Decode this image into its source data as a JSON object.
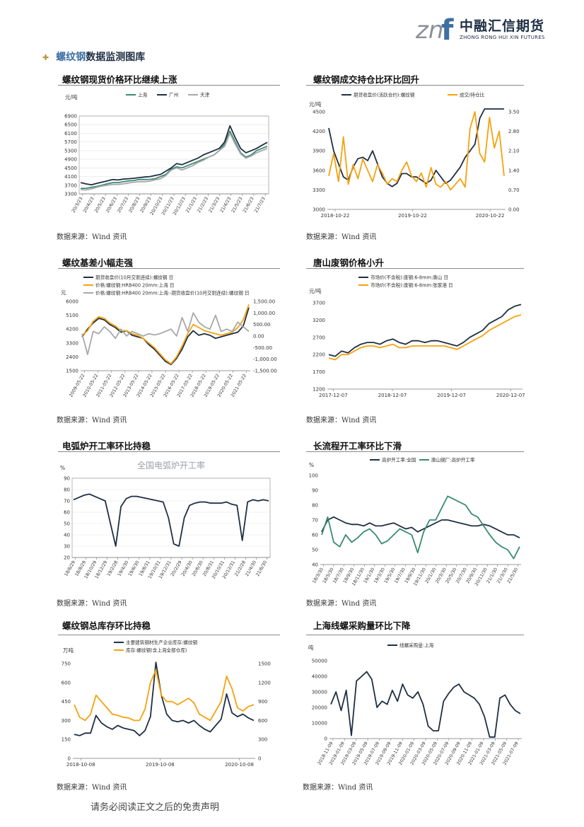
{
  "header": {
    "logo_mark": "znf",
    "logo_cn": "中融汇信期货",
    "logo_en": "ZHONG RONG HUI XIN FUTURES",
    "colors": {
      "navy": "#1f2f44",
      "blue": "#3d6fa3",
      "gray": "#8a8f97"
    }
  },
  "section": {
    "bullet": "✚",
    "prefix": "螺纹钢",
    "rest": "数据监测图库"
  },
  "source_text": "数据来源：Wind 资讯",
  "footer": "请务必阅读正文之后的免责声明",
  "panels": [
    {
      "title": "螺纹钢现货价格环比继续上涨"
    },
    {
      "title": "螺纹钢成交持仓比环比回升"
    },
    {
      "title": "螺纹基差小幅走强"
    },
    {
      "title": "唐山废钢价格小升"
    },
    {
      "title": "电弧炉开工率环比持稳"
    },
    {
      "title": "长流程开工率环比下滑"
    },
    {
      "title": "螺纹钢总库存环比持稳"
    },
    {
      "title": "上海线螺采购量环比下降"
    }
  ],
  "chart_data": [
    {
      "type": "line",
      "ylabel": "元/吨",
      "yticks": [
        3300,
        3700,
        4100,
        4500,
        4900,
        5300,
        5700,
        6100,
        6500,
        6900
      ],
      "ylim": [
        3300,
        6900
      ],
      "xticks": [
        "20/3/23",
        "20/4/23",
        "20/5/23",
        "20/6/23",
        "20/7/23",
        "20/8/23",
        "20/9/23",
        "20/10/23",
        "20/11/23",
        "20/12/23",
        "21/1/23",
        "21/2/23",
        "21/3/23",
        "21/4/23",
        "21/5/23",
        "21/6/23",
        "21/7/23"
      ],
      "grid": true,
      "legend_position": "top",
      "series": [
        {
          "name": "上海",
          "color": "#3a8a72",
          "values": [
            3550,
            3560,
            3600,
            3640,
            3700,
            3760,
            3820,
            3820,
            3860,
            3900,
            3920,
            3960,
            3960,
            3970,
            4000,
            4100,
            4200,
            4450,
            4550,
            4500,
            4600,
            4700,
            4800,
            4900,
            5000,
            5100,
            5300,
            5600,
            6200,
            5700,
            5200,
            5000,
            5100,
            5300,
            5400,
            5500
          ]
        },
        {
          "name": "广州",
          "color": "#1f2f44",
          "values": [
            3820,
            3760,
            3720,
            3780,
            3840,
            3900,
            3960,
            3940,
            3980,
            4000,
            4020,
            4050,
            4080,
            4100,
            4150,
            4200,
            4350,
            4500,
            4700,
            4650,
            4750,
            4850,
            4950,
            5100,
            5200,
            5300,
            5400,
            5700,
            6450,
            5900,
            5400,
            5200,
            5300,
            5400,
            5550,
            5680
          ]
        },
        {
          "name": "天津",
          "color": "#a8a8a8",
          "values": [
            3500,
            3480,
            3530,
            3600,
            3660,
            3700,
            3740,
            3740,
            3760,
            3800,
            3840,
            3860,
            3860,
            3890,
            3950,
            4000,
            4150,
            4400,
            4500,
            4400,
            4500,
            4600,
            4750,
            4850,
            5000,
            5100,
            5300,
            5500,
            6100,
            5600,
            5150,
            4950,
            5050,
            5200,
            5300,
            5400
          ]
        }
      ]
    },
    {
      "type": "line",
      "ylabel": "元/吨",
      "yticks": [
        3000,
        3300,
        3600,
        3900,
        4200,
        4500
      ],
      "ylim": [
        3000,
        4500
      ],
      "y2ticks": [
        "0.00",
        "0.70",
        "1.40",
        "2.10",
        "2.80",
        "3.50"
      ],
      "y2lim": [
        0,
        3.5
      ],
      "xticks": [
        "2018-10-22",
        "2019-10-22",
        "2020-10-22"
      ],
      "legend_position": "top",
      "series": [
        {
          "name": "期货收盘价(活跃合约):螺纹钢",
          "color": "#1f2f44",
          "axis": "left",
          "values": [
            4250,
            3900,
            3700,
            3500,
            3450,
            3650,
            3780,
            3800,
            3750,
            3900,
            3700,
            3500,
            3400,
            3350,
            3400,
            3550,
            3550,
            3500,
            3500,
            3450,
            3400,
            3450,
            3600,
            3500,
            3400,
            3450,
            3550,
            3650,
            3800,
            3900,
            4000,
            4400,
            4700,
            4600,
            5000,
            4800,
            4600
          ]
        },
        {
          "name": "成交/持仓比",
          "color": "#f5a20d",
          "axis": "right",
          "values": [
            1.2,
            2.0,
            1.0,
            2.6,
            0.9,
            1.6,
            1.1,
            1.8,
            1.4,
            1.0,
            1.6,
            1.3,
            0.9,
            1.1,
            1.0,
            1.4,
            1.7,
            1.2,
            1.0,
            1.3,
            0.8,
            1.5,
            0.9,
            0.8,
            1.0,
            0.7,
            0.9,
            1.1,
            0.8,
            2.9,
            3.5,
            2.0,
            1.7,
            3.3,
            2.2,
            2.8,
            1.2
          ]
        }
      ]
    },
    {
      "type": "line",
      "ylabel": "元",
      "yticks": [
        1500,
        2400,
        3300,
        4200,
        5100,
        6000
      ],
      "ylim": [
        1500,
        6000
      ],
      "y2ticks": [
        "-1,500.00",
        "-1,000.00",
        "-500.00",
        "0.00",
        "500.00",
        "1,000.00",
        "1,500.00"
      ],
      "y2lim": [
        -1500,
        1500
      ],
      "xticks": [
        "2009-05-22",
        "2010-05-22",
        "2011-05-22",
        "2012-05-22",
        "2013-05-22",
        "2014-05-22",
        "2015-05-22",
        "2016-05-22",
        "2017-05-22",
        "2018-05-22",
        "2019-05-22",
        "2020-05-22",
        "2021-05-22"
      ],
      "legend_position": "top",
      "series": [
        {
          "name": "期货收盘价(10月交割连续):螺纹钢 日",
          "color": "#1f2f44",
          "axis": "left",
          "values": [
            3700,
            4200,
            4600,
            4900,
            4800,
            4500,
            4300,
            4000,
            4100,
            3800,
            3700,
            3600,
            3200,
            2900,
            2500,
            2100,
            1900,
            2300,
            2900,
            3700,
            4100,
            3800,
            3900,
            3800,
            3600,
            3700,
            3800,
            3900,
            4000,
            4400,
            5600
          ]
        },
        {
          "name": "价格:螺纹钢:HRB400 20mm:上海 日",
          "color": "#f5a20d",
          "axis": "left",
          "values": [
            3800,
            4100,
            4700,
            5000,
            4900,
            4600,
            4400,
            4100,
            4100,
            3900,
            3800,
            3600,
            3300,
            3000,
            2600,
            2200,
            1950,
            2400,
            3100,
            3900,
            4500,
            4300,
            4100,
            4000,
            3900,
            3800,
            3900,
            4000,
            4300,
            4800,
            5800
          ]
        },
        {
          "name": "价格:螺纹钢:HRB400 20mm:上海:-期货收盘价(10月交割连续):螺纹钢 日",
          "color": "#a8a8a8",
          "axis": "right",
          "values": [
            100,
            -800,
            200,
            100,
            400,
            200,
            -100,
            300,
            0,
            200,
            100,
            0,
            100,
            50,
            100,
            200,
            300,
            0,
            800,
            200,
            1000,
            600,
            400,
            300,
            900,
            200,
            300,
            200,
            600,
            400,
            200
          ]
        }
      ]
    },
    {
      "type": "line",
      "ylabel": "元/吨",
      "yticks": [
        1200,
        1700,
        2200,
        2700,
        3200,
        3700
      ],
      "ylim": [
        1200,
        3700
      ],
      "xticks": [
        "2017-12-07",
        "2018-12-07",
        "2019-12-07",
        "2020-12-07"
      ],
      "legend_position": "top",
      "series": [
        {
          "name": "市场价(不含税):废钢:6-8mm:唐山 日",
          "color": "#1f2f44",
          "values": [
            2200,
            2150,
            2300,
            2250,
            2400,
            2500,
            2550,
            2550,
            2500,
            2600,
            2650,
            2550,
            2500,
            2600,
            2600,
            2550,
            2600,
            2600,
            2550,
            2500,
            2450,
            2550,
            2700,
            2800,
            2900,
            3100,
            3200,
            3300,
            3500,
            3600,
            3650
          ]
        },
        {
          "name": "市场价(不含税):废钢:6-8mm:张家港 日",
          "color": "#f5a20d",
          "values": [
            2100,
            2050,
            2200,
            2200,
            2300,
            2400,
            2450,
            2450,
            2400,
            2450,
            2500,
            2400,
            2400,
            2450,
            2450,
            2450,
            2450,
            2450,
            2450,
            2400,
            2350,
            2450,
            2550,
            2650,
            2750,
            2900,
            3000,
            3100,
            3200,
            3300,
            3350
          ]
        }
      ]
    },
    {
      "type": "line",
      "title": "全国电弧炉开工率",
      "ylabel": "%",
      "yticks": [
        20,
        30,
        40,
        50,
        60,
        70,
        80,
        90
      ],
      "ylim": [
        20,
        90
      ],
      "xticks": [
        "18/6/29",
        "18/8/29",
        "18/10/29",
        "18/12/29",
        "19/2/28",
        "19/4/30",
        "19/6/30",
        "19/8/31",
        "19/10/31",
        "19/12/31",
        "20/2/29",
        "20/4/30",
        "20/6/30",
        "20/8/31",
        "20/10/31",
        "20/12/31",
        "21/2/28",
        "21/4/30",
        "21/6/30"
      ],
      "grid": true,
      "series": [
        {
          "name": "全国电弧炉开工率",
          "color": "#1f2f44",
          "values": [
            71,
            73,
            75,
            76,
            74,
            72,
            70,
            50,
            30,
            65,
            72,
            74,
            74,
            73,
            72,
            71,
            70,
            69,
            55,
            32,
            30,
            55,
            66,
            68,
            69,
            69,
            68,
            68,
            68,
            69,
            67,
            66,
            35,
            69,
            71,
            70,
            71,
            70
          ]
        }
      ]
    },
    {
      "type": "line",
      "ylabel": "%",
      "yticks": [
        40,
        50,
        60,
        70,
        80,
        90,
        100
      ],
      "ylim": [
        40,
        100
      ],
      "xticks": [
        "18/3/30",
        "18/5/30",
        "18/7/30",
        "18/9/30",
        "18/11/30",
        "19/1/30",
        "19/3/30",
        "19/5/30",
        "19/7/30",
        "19/9/30",
        "19/11/30",
        "20/1/30",
        "20/3/30",
        "20/5/30",
        "20/7/30",
        "20/9/30",
        "20/11/30",
        "21/1/30",
        "21/3/30",
        "21/5/30"
      ],
      "legend_position": "top",
      "series": [
        {
          "name": "高炉开工率:全国",
          "color": "#1f2f44",
          "values": [
            62,
            70,
            72,
            70,
            68,
            67,
            67,
            66,
            68,
            66,
            66,
            67,
            68,
            66,
            64,
            65,
            62,
            64,
            66,
            68,
            70,
            70,
            69,
            68,
            67,
            66,
            66,
            67,
            66,
            64,
            62,
            60,
            60,
            58
          ]
        },
        {
          "name": "唐山钢厂:高炉开工率",
          "color": "#3a8a72",
          "values": [
            60,
            72,
            55,
            52,
            60,
            55,
            58,
            62,
            64,
            60,
            54,
            56,
            60,
            64,
            62,
            60,
            48,
            62,
            70,
            70,
            78,
            86,
            84,
            82,
            80,
            74,
            72,
            66,
            60,
            55,
            52,
            50,
            44,
            52
          ]
        }
      ]
    },
    {
      "type": "line",
      "ylabel": "万吨",
      "yticks": [
        0,
        150,
        300,
        450,
        600,
        750
      ],
      "ylim": [
        0,
        750
      ],
      "y2ticks": [
        "0",
        "300",
        "600",
        "900",
        "1200",
        "1500"
      ],
      "y2lim": [
        0,
        1500
      ],
      "xticks": [
        "2018-10-08",
        "2019-10-08",
        "2020-10-08"
      ],
      "legend_position": "top",
      "series": [
        {
          "name": "主要建筑钢材生产企业库存:螺纹钢",
          "color": "#1f2f44",
          "axis": "left",
          "values": [
            190,
            180,
            200,
            200,
            340,
            280,
            250,
            230,
            260,
            240,
            230,
            220,
            180,
            220,
            330,
            760,
            500,
            350,
            300,
            290,
            300,
            280,
            300,
            260,
            230,
            210,
            260,
            310,
            510,
            360,
            330,
            350,
            320,
            300
          ]
        },
        {
          "name": "库存:螺纹钢(含上海全部仓库)",
          "color": "#f5a20d",
          "axis": "right",
          "values": [
            850,
            650,
            600,
            700,
            1000,
            900,
            800,
            700,
            680,
            650,
            640,
            600,
            600,
            780,
            1200,
            1400,
            1000,
            900,
            900,
            850,
            900,
            950,
            880,
            700,
            650,
            600,
            750,
            900,
            1300,
            1100,
            800,
            750,
            820,
            850
          ]
        }
      ]
    },
    {
      "type": "line",
      "ylabel": "吨",
      "yticks": [
        0,
        10000,
        20000,
        30000,
        40000,
        50000
      ],
      "ylim": [
        0,
        50000
      ],
      "xticks": [
        "2018-11-09",
        "2019-01-09",
        "2019-03-09",
        "2019-05-09",
        "2019-07-09",
        "2019-09-09",
        "2019-11-09",
        "2020-01-09",
        "2020-03-09",
        "2020-05-09",
        "2020-07-09",
        "2020-09-09",
        "2020-11-09",
        "2021-01-09",
        "2021-03-09",
        "2021-05-09",
        "2021-07-09"
      ],
      "legend_position": "top",
      "series": [
        {
          "name": "线螺采购量:上海",
          "color": "#1f2f44",
          "values": [
            22000,
            30000,
            18000,
            31000,
            2000,
            37000,
            40000,
            43000,
            38000,
            20000,
            24000,
            22000,
            31000,
            24000,
            35000,
            28000,
            26000,
            30000,
            22000,
            8000,
            5000,
            5000,
            24000,
            29000,
            33000,
            35000,
            30000,
            28000,
            26000,
            22000,
            14000,
            1000,
            1000,
            26000,
            28000,
            22000,
            18000,
            16000
          ]
        }
      ]
    }
  ]
}
